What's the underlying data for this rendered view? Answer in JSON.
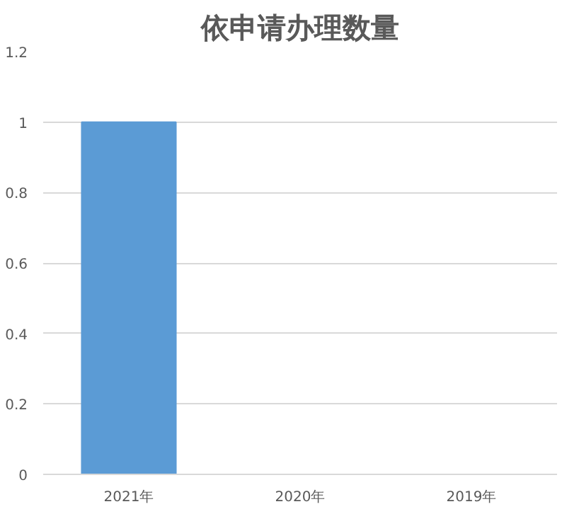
{
  "chart_data": {
    "type": "bar",
    "title": "依申请办理数量",
    "categories": [
      "2021年",
      "2020年",
      "2019年"
    ],
    "values": [
      1,
      0,
      0
    ],
    "color": "#5b9bd5",
    "ylim": [
      0,
      1.2
    ],
    "yticks": [
      0,
      0.2,
      0.4,
      0.6,
      0.8,
      1,
      1.2
    ],
    "grid": "y"
  }
}
